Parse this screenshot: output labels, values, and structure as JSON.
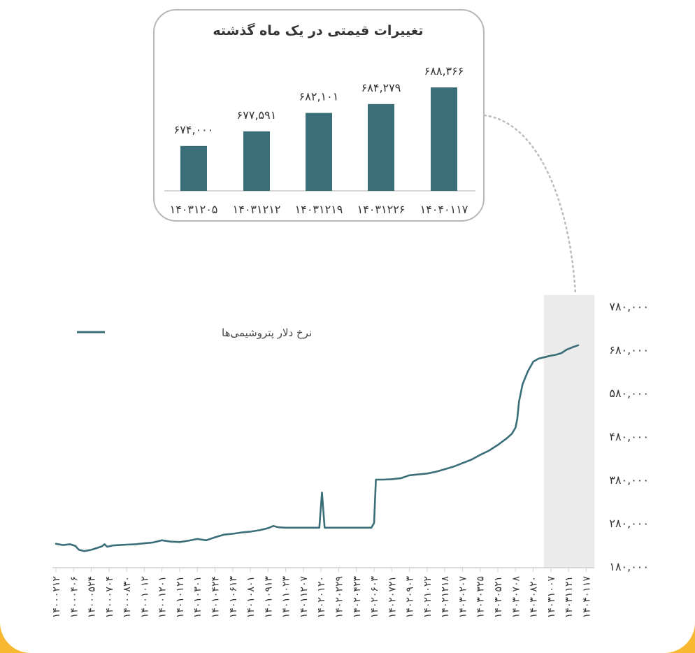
{
  "chart_data": [
    {
      "type": "bar",
      "title": "تغییرات قیمتی در یک ماه گذشته",
      "categories": [
        "۱۴۰۳۱۲۰۵",
        "۱۴۰۳۱۲۱۲",
        "۱۴۰۳۱۲۱۹",
        "۱۴۰۳۱۲۲۶",
        "۱۴۰۴۰۱۱۷"
      ],
      "values": [
        674000,
        677591,
        682101,
        684279,
        688366
      ],
      "value_labels": [
        "۶۷۴,۰۰۰",
        "۶۷۷,۵۹۱",
        "۶۸۲,۱۰۱",
        "۶۸۴,۲۷۹",
        "۶۸۸,۳۶۶"
      ],
      "bar_color": "#3a6e78"
    },
    {
      "type": "line",
      "legend": "نرخ دلار پتروشیمی‌ها",
      "legend_position": "top-left",
      "ylim": [
        180000,
        780000
      ],
      "y_ticks": [
        180000,
        280000,
        380000,
        480000,
        580000,
        680000,
        780000
      ],
      "y_tick_labels": [
        "۱۸۰,۰۰۰",
        "۲۸۰,۰۰۰",
        "۳۸۰,۰۰۰",
        "۴۸۰,۰۰۰",
        "۵۸۰,۰۰۰",
        "۶۸۰,۰۰۰",
        "۷۸۰,۰۰۰"
      ],
      "x_tick_labels": [
        "۱۴۰۰۰۲۱۲",
        "۱۴۰۰۰۴۰۶",
        "۱۴۰۰۰۵۲۴",
        "۱۴۰۰۰۷۰۴",
        "۱۴۰۰۰۸۳۰",
        "۱۴۰۰۱۰۱۲",
        "۱۴۰۰۱۲۰۱",
        "۱۴۰۱۰۱۲۱",
        "۱۴۰۱۰۳۰۱",
        "۱۴۰۱۰۴۲۴",
        "۱۴۰۱۰۶۱۳",
        "۱۴۰۱۰۸۰۱",
        "۱۴۰۱۰۹۱۳",
        "۱۴۰۱۱۰۲۳",
        "۱۴۰۱۱۲۰۷",
        "۱۴۰۲۰۱۲۰",
        "۱۴۰۲۰۲۲۹",
        "۱۴۰۲۰۴۲۳",
        "۱۴۰۲۰۶۰۳",
        "۱۴۰۲۰۷۲۱",
        "۱۴۰۲۰۹۰۳",
        "۱۴۰۲۱۰۲۲",
        "۱۴۰۲۱۲۱۸",
        "۱۴۰۳۰۲۰۷",
        "۱۴۰۳۰۳۲۵",
        "۱۴۰۳۰۵۲۱",
        "۱۴۰۳۰۷۰۸",
        "۱۴۰۳۰۸۲۰",
        "۱۴۰۳۱۰۰۷",
        "۱۴۰۳۱۱۲۱",
        "۱۴۰۴۰۱۱۷"
      ],
      "highlight_range": [
        "۱۴۰۳۱۰۰۷",
        "۱۴۰۴۰۱۱۷"
      ],
      "line_color": "#3a6e78",
      "grid": false,
      "points": [
        [
          0.0,
          232000
        ],
        [
          0.4,
          229000
        ],
        [
          0.8,
          231000
        ],
        [
          1.1,
          227000
        ],
        [
          1.3,
          218000
        ],
        [
          1.6,
          215000
        ],
        [
          2.0,
          218000
        ],
        [
          2.3,
          222000
        ],
        [
          2.6,
          226000
        ],
        [
          2.75,
          231000
        ],
        [
          2.9,
          225000
        ],
        [
          3.2,
          228000
        ],
        [
          3.6,
          229000
        ],
        [
          4.0,
          230000
        ],
        [
          4.5,
          231000
        ],
        [
          5.0,
          233000
        ],
        [
          5.5,
          235000
        ],
        [
          6.0,
          240000
        ],
        [
          6.5,
          237000
        ],
        [
          7.0,
          236000
        ],
        [
          7.5,
          239000
        ],
        [
          8.0,
          243000
        ],
        [
          8.5,
          240000
        ],
        [
          9.0,
          247000
        ],
        [
          9.5,
          253000
        ],
        [
          10.0,
          255000
        ],
        [
          10.5,
          258000
        ],
        [
          11.0,
          260000
        ],
        [
          11.5,
          263000
        ],
        [
          12.0,
          268000
        ],
        [
          12.3,
          273000
        ],
        [
          12.6,
          270000
        ],
        [
          13.0,
          269000
        ],
        [
          14.0,
          269000
        ],
        [
          14.9,
          269000
        ],
        [
          15.05,
          350000
        ],
        [
          15.2,
          269000
        ],
        [
          16.0,
          269000
        ],
        [
          17.0,
          269000
        ],
        [
          17.85,
          269000
        ],
        [
          18.0,
          280000
        ],
        [
          18.1,
          380000
        ],
        [
          18.5,
          380000
        ],
        [
          19.0,
          381000
        ],
        [
          19.5,
          383000
        ],
        [
          20.0,
          390000
        ],
        [
          20.5,
          392000
        ],
        [
          21.0,
          394000
        ],
        [
          21.5,
          398000
        ],
        [
          22.0,
          404000
        ],
        [
          22.5,
          410000
        ],
        [
          23.0,
          418000
        ],
        [
          23.5,
          426000
        ],
        [
          24.0,
          437000
        ],
        [
          24.5,
          447000
        ],
        [
          25.0,
          460000
        ],
        [
          25.5,
          475000
        ],
        [
          25.8,
          486000
        ],
        [
          26.0,
          500000
        ],
        [
          26.1,
          520000
        ],
        [
          26.2,
          560000
        ],
        [
          26.4,
          600000
        ],
        [
          26.7,
          630000
        ],
        [
          27.0,
          652000
        ],
        [
          27.3,
          659000
        ],
        [
          27.6,
          662000
        ],
        [
          28.0,
          666000
        ],
        [
          28.3,
          668000
        ],
        [
          28.6,
          672000
        ],
        [
          28.9,
          680000
        ],
        [
          29.2,
          685000
        ],
        [
          29.55,
          690000
        ]
      ]
    }
  ]
}
